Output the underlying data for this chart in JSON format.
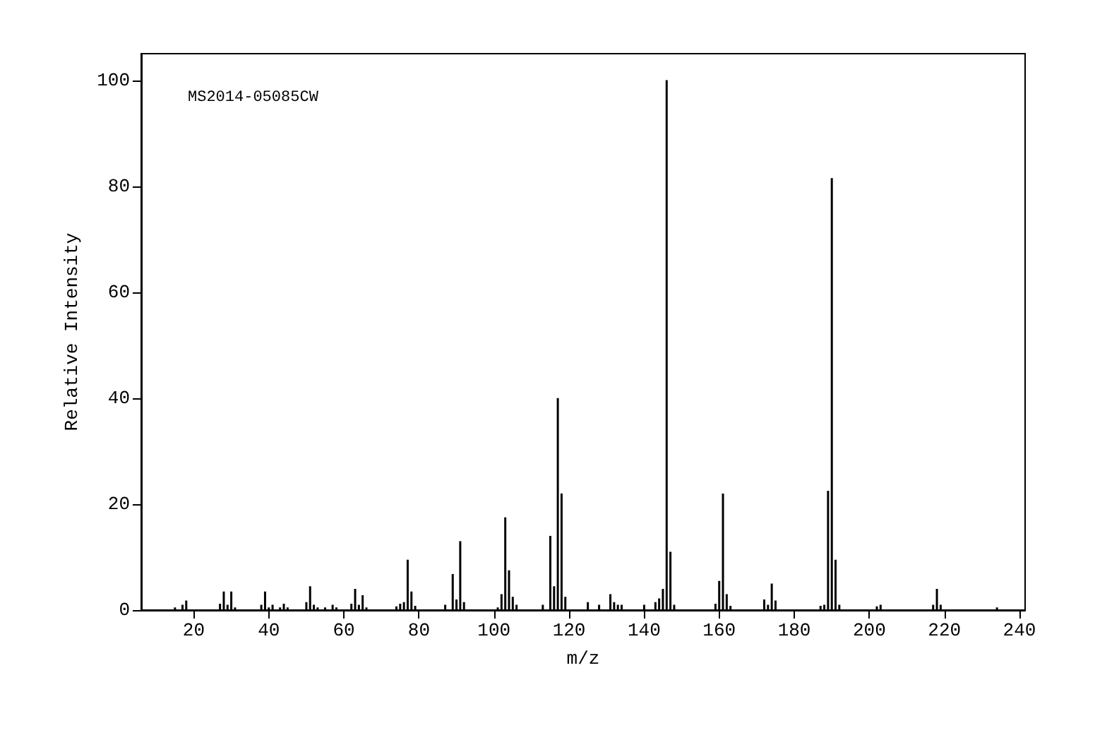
{
  "chart_data": {
    "type": "bar",
    "xlabel": "m/z",
    "ylabel": "Relative Intensity",
    "annotations": [
      "MS2014-05085CW"
    ],
    "x": [
      15,
      17,
      18,
      27,
      28,
      29,
      30,
      31,
      38,
      39,
      40,
      41,
      43,
      44,
      45,
      50,
      51,
      52,
      53,
      55,
      57,
      58,
      62,
      63,
      64,
      65,
      66,
      74,
      75,
      76,
      77,
      78,
      79,
      87,
      89,
      90,
      91,
      92,
      101,
      102,
      103,
      104,
      105,
      106,
      113,
      115,
      116,
      117,
      118,
      119,
      125,
      128,
      131,
      132,
      133,
      134,
      140,
      143,
      144,
      145,
      146,
      147,
      148,
      159,
      160,
      161,
      162,
      163,
      172,
      173,
      174,
      175,
      187,
      188,
      189,
      190,
      191,
      192,
      202,
      203,
      217,
      218,
      219,
      234
    ],
    "values": [
      0.5,
      1,
      1.8,
      1.2,
      3.5,
      1,
      3.5,
      0.5,
      1,
      3.5,
      0.5,
      1,
      0.5,
      1.2,
      0.5,
      1.5,
      4.5,
      1,
      0.5,
      0.5,
      1,
      0.5,
      1.2,
      4,
      1,
      2.8,
      0.5,
      0.7,
      1.2,
      1.5,
      9.5,
      3.5,
      0.8,
      1,
      6.8,
      2,
      13,
      1.5,
      0.5,
      3,
      17.5,
      7.5,
      2.5,
      1,
      1,
      14,
      4.5,
      40,
      22,
      2.5,
      1.5,
      1,
      3,
      1.5,
      1,
      1,
      1,
      1.5,
      2.2,
      4,
      100,
      11,
      1,
      1.2,
      5.5,
      22,
      3,
      0.8,
      2,
      1,
      5,
      1.8,
      0.8,
      1,
      22.5,
      81.5,
      9.5,
      1,
      0.7,
      1,
      1,
      4,
      1,
      0.5
    ],
    "color": "#000000",
    "xlim": [
      6,
      241.5
    ],
    "xticks": [
      20,
      40,
      60,
      80,
      100,
      120,
      140,
      160,
      180,
      200,
      220,
      240
    ],
    "ylim": [
      0,
      105
    ],
    "yticks": [
      0,
      20,
      40,
      60,
      80,
      100
    ]
  }
}
